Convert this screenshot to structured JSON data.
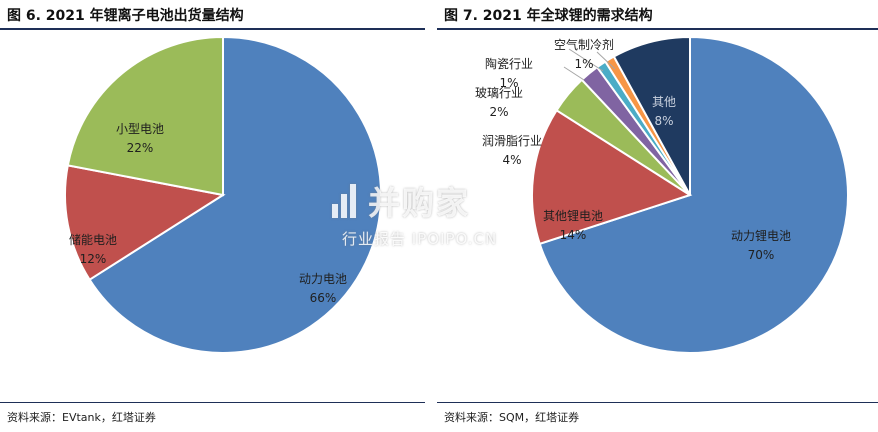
{
  "watermark": {
    "brand": "并购家",
    "subtitle": "行业报告 IPOIPO.CN"
  },
  "colors": {
    "rule": "#1e2f57",
    "blue": "#4f81bd",
    "red": "#c0504d",
    "green": "#9bbb59",
    "purple": "#8064a2",
    "cyan": "#4bacc6",
    "orange": "#f79646",
    "navy": "#1f3a60"
  },
  "chart_data": [
    {
      "type": "pie",
      "title": "图 6. 2021 年锂离子电池出货量结构",
      "source": "资料来源：EVtank，红塔证券",
      "slices": [
        {
          "label": "动力电池",
          "value": 66,
          "value_label": "66%",
          "color": "#4f81bd"
        },
        {
          "label": "储能电池",
          "value": 12,
          "value_label": "12%",
          "color": "#c0504d"
        },
        {
          "label": "小型电池",
          "value": 22,
          "value_label": "22%",
          "color": "#9bbb59"
        }
      ]
    },
    {
      "type": "pie",
      "title": "图 7. 2021 年全球锂的需求结构",
      "source": "资料来源：SQM，红塔证券",
      "slices": [
        {
          "label": "动力锂电池",
          "value": 70,
          "value_label": "70%",
          "color": "#4f81bd"
        },
        {
          "label": "其他锂电池",
          "value": 14,
          "value_label": "14%",
          "color": "#c0504d"
        },
        {
          "label": "润滑脂行业",
          "value": 4,
          "value_label": "4%",
          "color": "#9bbb59"
        },
        {
          "label": "玻璃行业",
          "value": 2,
          "value_label": "2%",
          "color": "#8064a2"
        },
        {
          "label": "陶瓷行业",
          "value": 1,
          "value_label": "1%",
          "color": "#4bacc6"
        },
        {
          "label": "空气制冷剂",
          "value": 1,
          "value_label": "1%",
          "color": "#f79646"
        },
        {
          "label": "其他",
          "value": 8,
          "value_label": "8%",
          "color": "#1f3a60"
        }
      ]
    }
  ]
}
